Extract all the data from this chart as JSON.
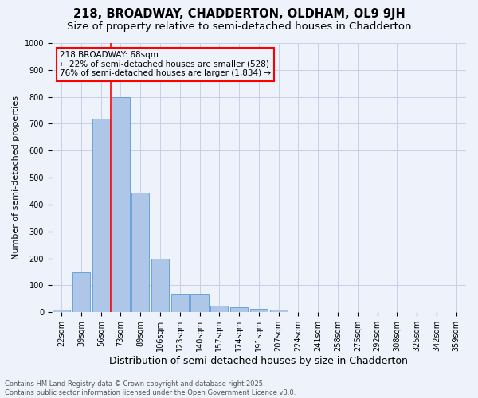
{
  "title": "218, BROADWAY, CHADDERTON, OLDHAM, OL9 9JH",
  "subtitle": "Size of property relative to semi-detached houses in Chadderton",
  "xlabel": "Distribution of semi-detached houses by size in Chadderton",
  "ylabel": "Number of semi-detached properties",
  "bar_labels": [
    "22sqm",
    "39sqm",
    "56sqm",
    "73sqm",
    "89sqm",
    "106sqm",
    "123sqm",
    "140sqm",
    "157sqm",
    "174sqm",
    "191sqm",
    "207sqm",
    "224sqm",
    "241sqm",
    "258sqm",
    "275sqm",
    "292sqm",
    "308sqm",
    "325sqm",
    "342sqm",
    "359sqm"
  ],
  "bar_values": [
    10,
    148,
    720,
    800,
    445,
    200,
    68,
    68,
    25,
    18,
    12,
    10,
    0,
    0,
    0,
    0,
    0,
    0,
    0,
    0,
    0
  ],
  "bar_color": "#aec6e8",
  "bar_edge_color": "#5b9bd5",
  "vline_x": 2.5,
  "vline_color": "red",
  "annotation_text": "218 BROADWAY: 68sqm\n← 22% of semi-detached houses are smaller (528)\n76% of semi-detached houses are larger (1,834) →",
  "annotation_box_color": "red",
  "ylim": [
    0,
    1000
  ],
  "yticks": [
    0,
    100,
    200,
    300,
    400,
    500,
    600,
    700,
    800,
    900,
    1000
  ],
  "background_color": "#eef2fb",
  "grid_color": "#c8d0e8",
  "footer_text": "Contains HM Land Registry data © Crown copyright and database right 2025.\nContains public sector information licensed under the Open Government Licence v3.0.",
  "title_fontsize": 10.5,
  "subtitle_fontsize": 9.5,
  "annotation_fontsize": 7.5,
  "ylabel_fontsize": 8,
  "xlabel_fontsize": 9,
  "tick_fontsize": 7,
  "footer_fontsize": 6
}
